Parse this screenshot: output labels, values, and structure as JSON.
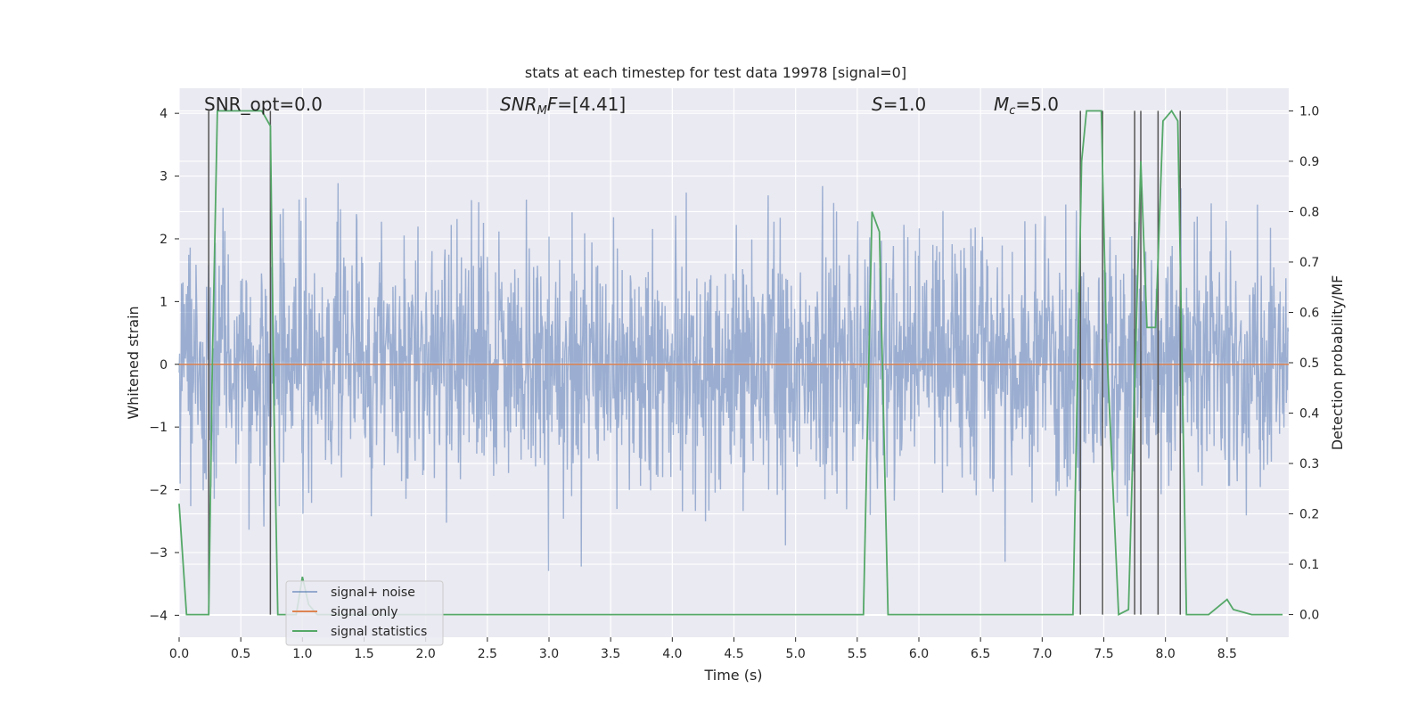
{
  "chart_data": {
    "type": "line",
    "title": "stats at each timestep for test data 19978 [signal=0]",
    "xlabel": "Time (s)",
    "ylabel": "Whitened strain",
    "y2label": "Detection probability/MF",
    "xlim": [
      0.0,
      9.0
    ],
    "ylim": [
      -4.35,
      4.4
    ],
    "y2lim": [
      -0.045,
      1.045
    ],
    "x_ticks": [
      "0.0",
      "0.5",
      "1.0",
      "1.5",
      "2.0",
      "2.5",
      "3.0",
      "3.5",
      "4.0",
      "4.5",
      "5.0",
      "5.5",
      "6.0",
      "6.5",
      "7.0",
      "7.5",
      "8.0",
      "8.5"
    ],
    "y_ticks": [
      "4",
      "3",
      "2",
      "1",
      "0",
      "−1",
      "−2",
      "−3",
      "−4"
    ],
    "y2_ticks": [
      "1.0",
      "0.9",
      "0.8",
      "0.7",
      "0.6",
      "0.5",
      "0.4",
      "0.3",
      "0.2",
      "0.1",
      "0.0"
    ],
    "grid": true,
    "legend_position": "lower-left",
    "annotations": [
      {
        "text": "SNR_opt=0.0",
        "x": 0.2,
        "y": 4.05
      },
      {
        "text": "SNR_MF=[4.41]",
        "x": 2.6,
        "y": 4.05
      },
      {
        "text": "S=1.0",
        "x": 5.6,
        "y": 4.05
      },
      {
        "text": "M_c=5.0",
        "x": 6.6,
        "y": 4.05
      }
    ],
    "series": [
      {
        "name": "signal+ noise",
        "color": "#4c72b0",
        "description_kind": "noise",
        "samples_per_second": 256,
        "sigma": 1.0,
        "range": [
          -4.0,
          4.0
        ]
      },
      {
        "name": "signal only",
        "color": "#dd8452",
        "values_constant": 0.0
      },
      {
        "name": "signal statistics",
        "color": "#55a868",
        "axis": "right",
        "points": [
          [
            0.0,
            0.22
          ],
          [
            0.06,
            0.0
          ],
          [
            0.1,
            0.0
          ],
          [
            0.24,
            0.0
          ],
          [
            0.27,
            0.5
          ],
          [
            0.31,
            1.0
          ],
          [
            0.35,
            1.0
          ],
          [
            0.5,
            1.0
          ],
          [
            0.6,
            1.0
          ],
          [
            0.67,
            1.0
          ],
          [
            0.74,
            0.97
          ],
          [
            0.77,
            0.4
          ],
          [
            0.8,
            0.0
          ],
          [
            0.85,
            0.0
          ],
          [
            0.95,
            0.0
          ],
          [
            1.0,
            0.075
          ],
          [
            1.05,
            0.02
          ],
          [
            1.12,
            0.0
          ],
          [
            2.0,
            0.0
          ],
          [
            3.0,
            0.0
          ],
          [
            4.0,
            0.0
          ],
          [
            5.0,
            0.0
          ],
          [
            5.55,
            0.0
          ],
          [
            5.62,
            0.8
          ],
          [
            5.68,
            0.76
          ],
          [
            5.75,
            0.0
          ],
          [
            5.8,
            0.0
          ],
          [
            6.0,
            0.0
          ],
          [
            7.0,
            0.0
          ],
          [
            7.25,
            0.0
          ],
          [
            7.32,
            0.9
          ],
          [
            7.36,
            1.0
          ],
          [
            7.48,
            1.0
          ],
          [
            7.52,
            0.55
          ],
          [
            7.62,
            0.0
          ],
          [
            7.7,
            0.01
          ],
          [
            7.8,
            0.9
          ],
          [
            7.85,
            0.57
          ],
          [
            7.92,
            0.57
          ],
          [
            7.98,
            0.98
          ],
          [
            8.05,
            1.0
          ],
          [
            8.1,
            0.98
          ],
          [
            8.17,
            0.0
          ],
          [
            8.22,
            0.0
          ],
          [
            8.35,
            0.0
          ],
          [
            8.5,
            0.03
          ],
          [
            8.55,
            0.01
          ],
          [
            8.7,
            0.0
          ],
          [
            8.8,
            0.0
          ],
          [
            8.95,
            0.0
          ]
        ]
      }
    ],
    "vertical_markers": [
      0.24,
      0.74,
      7.31,
      7.49,
      7.75,
      7.8,
      7.94,
      8.12
    ],
    "vertical_marker_color": "#555555"
  }
}
